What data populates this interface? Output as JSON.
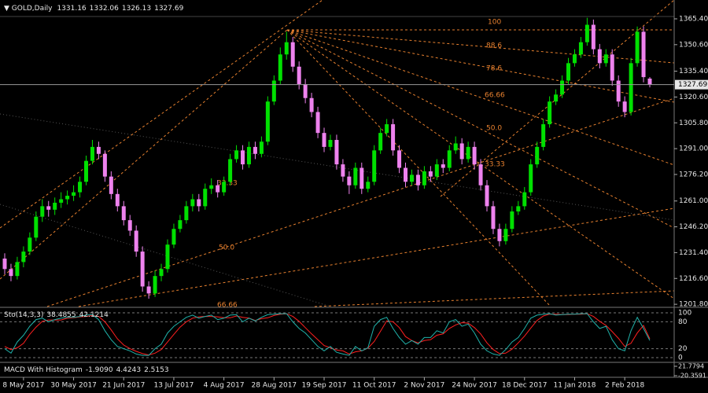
{
  "chart_data": {
    "type": "candlestick",
    "title": "GOLD,Daily",
    "categories": [
      null,
      null,
      null,
      "8 May 2017",
      null,
      null,
      null,
      null,
      null,
      null,
      null,
      "30 May 2017",
      null,
      null,
      null,
      null,
      null,
      null,
      null,
      "21 Jun 2017",
      null,
      null,
      null,
      null,
      null,
      null,
      null,
      "13 Jul 2017",
      null,
      null,
      null,
      null,
      null,
      null,
      null,
      "4 Aug 2017",
      null,
      null,
      null,
      null,
      null,
      null,
      null,
      "28 Aug 2017",
      null,
      null,
      null,
      null,
      null,
      null,
      null,
      "19 Sep 2017",
      null,
      null,
      null,
      null,
      null,
      null,
      null,
      "11 Oct 2017",
      null,
      null,
      null,
      null,
      null,
      null,
      null,
      "2 Nov 2017",
      null,
      null,
      null,
      null,
      null,
      null,
      null,
      "24 Nov 2017",
      null,
      null,
      null,
      null,
      null,
      null,
      null,
      "18 Dec 2017",
      null,
      null,
      null,
      null,
      null,
      null,
      null,
      "11 Jan 2018",
      null,
      null,
      null,
      null,
      null,
      null,
      null,
      "2 Feb 2018",
      null,
      null,
      null,
      null
    ],
    "candles": [
      [
        1228,
        1231,
        1219,
        1222
      ],
      [
        1222,
        1225,
        1215,
        1218
      ],
      [
        1218,
        1229,
        1216,
        1226
      ],
      [
        1226,
        1235,
        1223,
        1232
      ],
      [
        1232,
        1243,
        1230,
        1240
      ],
      [
        1240,
        1255,
        1238,
        1252
      ],
      [
        1252,
        1262,
        1249,
        1258
      ],
      [
        1258,
        1261,
        1252,
        1256
      ],
      [
        1256,
        1263,
        1253,
        1260
      ],
      [
        1260,
        1266,
        1257,
        1262
      ],
      [
        1262,
        1267,
        1259,
        1264
      ],
      [
        1264,
        1270,
        1261,
        1266
      ],
      [
        1266,
        1275,
        1263,
        1272
      ],
      [
        1272,
        1287,
        1270,
        1284
      ],
      [
        1284,
        1296,
        1282,
        1292
      ],
      [
        1292,
        1295,
        1285,
        1288
      ],
      [
        1288,
        1290,
        1272,
        1275
      ],
      [
        1275,
        1278,
        1262,
        1265
      ],
      [
        1265,
        1268,
        1255,
        1258
      ],
      [
        1258,
        1261,
        1247,
        1250
      ],
      [
        1250,
        1253,
        1241,
        1244
      ],
      [
        1244,
        1247,
        1229,
        1232
      ],
      [
        1232,
        1235,
        1209,
        1212
      ],
      [
        1212,
        1215,
        1205,
        1208
      ],
      [
        1208,
        1221,
        1206,
        1218
      ],
      [
        1218,
        1225,
        1215,
        1222
      ],
      [
        1222,
        1239,
        1220,
        1236
      ],
      [
        1236,
        1248,
        1234,
        1245
      ],
      [
        1245,
        1253,
        1243,
        1250
      ],
      [
        1250,
        1261,
        1248,
        1258
      ],
      [
        1258,
        1265,
        1255,
        1262
      ],
      [
        1262,
        1265,
        1255,
        1258
      ],
      [
        1258,
        1271,
        1256,
        1268
      ],
      [
        1268,
        1274,
        1265,
        1270
      ],
      [
        1270,
        1273,
        1263,
        1266
      ],
      [
        1266,
        1275,
        1264,
        1272
      ],
      [
        1272,
        1288,
        1270,
        1285
      ],
      [
        1285,
        1293,
        1283,
        1290
      ],
      [
        1290,
        1293,
        1279,
        1282
      ],
      [
        1282,
        1295,
        1280,
        1292
      ],
      [
        1292,
        1295,
        1285,
        1288
      ],
      [
        1288,
        1298,
        1286,
        1295
      ],
      [
        1295,
        1321,
        1293,
        1318
      ],
      [
        1318,
        1333,
        1316,
        1330
      ],
      [
        1330,
        1349,
        1328,
        1345
      ],
      [
        1345,
        1358,
        1342,
        1352
      ],
      [
        1352,
        1355,
        1335,
        1338
      ],
      [
        1338,
        1341,
        1325,
        1328
      ],
      [
        1328,
        1331,
        1317,
        1320
      ],
      [
        1320,
        1323,
        1309,
        1312
      ],
      [
        1312,
        1315,
        1297,
        1300
      ],
      [
        1300,
        1303,
        1289,
        1292
      ],
      [
        1292,
        1299,
        1290,
        1296
      ],
      [
        1296,
        1299,
        1279,
        1282
      ],
      [
        1282,
        1285,
        1272,
        1275
      ],
      [
        1275,
        1278,
        1265,
        1270
      ],
      [
        1270,
        1283,
        1268,
        1280
      ],
      [
        1280,
        1283,
        1265,
        1268
      ],
      [
        1268,
        1275,
        1266,
        1272
      ],
      [
        1272,
        1293,
        1270,
        1290
      ],
      [
        1290,
        1303,
        1288,
        1300
      ],
      [
        1300,
        1308,
        1298,
        1305
      ],
      [
        1305,
        1308,
        1287,
        1290
      ],
      [
        1290,
        1293,
        1277,
        1280
      ],
      [
        1280,
        1283,
        1269,
        1272
      ],
      [
        1272,
        1279,
        1270,
        1276
      ],
      [
        1276,
        1279,
        1267,
        1270
      ],
      [
        1270,
        1281,
        1268,
        1278
      ],
      [
        1278,
        1281,
        1272,
        1275
      ],
      [
        1275,
        1285,
        1273,
        1282
      ],
      [
        1282,
        1285,
        1277,
        1280
      ],
      [
        1280,
        1293,
        1278,
        1290
      ],
      [
        1290,
        1298,
        1288,
        1294
      ],
      [
        1294,
        1297,
        1282,
        1285
      ],
      [
        1285,
        1295,
        1283,
        1292
      ],
      [
        1292,
        1295,
        1279,
        1282
      ],
      [
        1282,
        1285,
        1267,
        1270
      ],
      [
        1270,
        1273,
        1255,
        1258
      ],
      [
        1258,
        1261,
        1242,
        1245
      ],
      [
        1245,
        1248,
        1235,
        1238
      ],
      [
        1238,
        1248,
        1236,
        1245
      ],
      [
        1245,
        1258,
        1243,
        1255
      ],
      [
        1255,
        1261,
        1253,
        1258
      ],
      [
        1258,
        1269,
        1256,
        1266
      ],
      [
        1266,
        1285,
        1264,
        1282
      ],
      [
        1282,
        1295,
        1280,
        1292
      ],
      [
        1292,
        1308,
        1290,
        1305
      ],
      [
        1305,
        1321,
        1303,
        1318
      ],
      [
        1318,
        1325,
        1316,
        1322
      ],
      [
        1322,
        1333,
        1320,
        1330
      ],
      [
        1330,
        1343,
        1328,
        1340
      ],
      [
        1340,
        1348,
        1338,
        1345
      ],
      [
        1345,
        1355,
        1343,
        1352
      ],
      [
        1352,
        1366,
        1350,
        1362
      ],
      [
        1362,
        1365,
        1345,
        1348
      ],
      [
        1348,
        1351,
        1337,
        1340
      ],
      [
        1340,
        1348,
        1338,
        1345
      ],
      [
        1345,
        1348,
        1327,
        1330
      ],
      [
        1330,
        1333,
        1315,
        1318
      ],
      [
        1318,
        1321,
        1309,
        1312
      ],
      [
        1312,
        1343,
        1310,
        1340
      ],
      [
        1340,
        1361,
        1338,
        1358
      ],
      [
        1358,
        1361,
        1329,
        1332
      ],
      [
        1331.16,
        1332.06,
        1326.13,
        1327.69
      ]
    ],
    "up_color": "#00e000",
    "down_color": "#ee82ee",
    "ylim": [
      1200.5,
      1376.2
    ],
    "yticks": [
      {
        "value": 1365.4,
        "label": "1365.40"
      },
      {
        "value": 1350.6,
        "label": "1350.60"
      },
      {
        "value": 1335.4,
        "label": "1335.40"
      },
      {
        "value": 1320.6,
        "label": "1320.60"
      },
      {
        "value": 1305.8,
        "label": "1305.80"
      },
      {
        "value": 1291,
        "label": "1291.00"
      },
      {
        "value": 1276.2,
        "label": "1276.20"
      },
      {
        "value": 1261,
        "label": "1261.00"
      },
      {
        "value": 1246.2,
        "label": "1246.20"
      },
      {
        "value": 1231.4,
        "label": "1231.40"
      },
      {
        "value": 1216.6,
        "label": "1216.60"
      },
      {
        "value": 1201.8,
        "label": "1201.80"
      }
    ],
    "fib_labels": [
      "100",
      "88.6",
      "78.6",
      "66.66",
      "50.0",
      "33.33",
      "33.33",
      "50.0",
      "66.66"
    ],
    "stochastic": {
      "name": "Sto(14,3,3)",
      "k_color": "#20b2aa",
      "d_color": "#ff2020",
      "ylim": [
        0,
        100
      ],
      "yticks": [
        0,
        20,
        80,
        100
      ],
      "k": [
        20,
        10,
        35,
        50,
        70,
        85,
        88,
        80,
        85,
        88,
        90,
        90,
        92,
        95,
        96,
        85,
        60,
        40,
        25,
        20,
        15,
        8,
        5,
        5,
        20,
        30,
        55,
        70,
        80,
        90,
        95,
        88,
        92,
        95,
        85,
        88,
        95,
        96,
        80,
        88,
        82,
        90,
        96,
        97,
        98,
        98,
        80,
        65,
        55,
        40,
        25,
        15,
        25,
        12,
        8,
        5,
        25,
        15,
        22,
        70,
        85,
        90,
        65,
        45,
        30,
        38,
        30,
        45,
        45,
        60,
        55,
        80,
        85,
        70,
        75,
        55,
        30,
        15,
        8,
        5,
        18,
        35,
        45,
        65,
        88,
        95,
        97,
        98,
        95,
        96,
        97,
        97,
        98,
        98,
        80,
        65,
        70,
        40,
        20,
        15,
        60,
        90,
        65,
        38.4855
      ],
      "d": [
        25,
        18,
        22,
        32,
        52,
        68,
        81,
        84,
        84,
        84,
        88,
        89,
        91,
        92,
        94,
        92,
        80,
        62,
        42,
        28,
        20,
        14,
        9,
        6,
        10,
        18,
        35,
        52,
        68,
        80,
        88,
        91,
        92,
        92,
        91,
        89,
        89,
        93,
        90,
        88,
        83,
        87,
        89,
        94,
        97,
        98,
        92,
        81,
        67,
        53,
        40,
        27,
        22,
        17,
        15,
        8,
        13,
        15,
        21,
        36,
        59,
        82,
        80,
        67,
        47,
        38,
        33,
        38,
        40,
        50,
        53,
        65,
        73,
        78,
        77,
        67,
        53,
        33,
        18,
        9,
        10,
        19,
        33,
        48,
        66,
        83,
        93,
        97,
        97,
        96,
        96,
        97,
        97,
        98,
        92,
        81,
        72,
        58,
        43,
        25,
        32,
        55,
        72,
        42.1214
      ]
    },
    "macd": {
      "name": "MACD With Histogram",
      "readings": [
        "-1.9090",
        "4.4243",
        "2.5153"
      ],
      "ylim": [
        -20.3591,
        21.7794
      ],
      "yticks": [
        -20.3591,
        21.7794
      ]
    }
  }
}
